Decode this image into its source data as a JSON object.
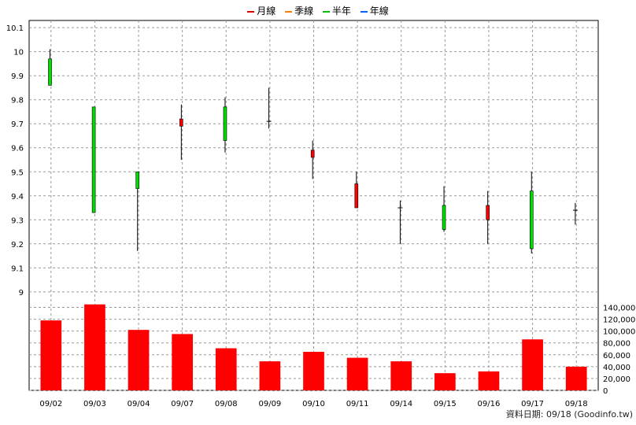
{
  "legend": [
    {
      "label": "月線",
      "color": "#e00000"
    },
    {
      "label": "季線",
      "color": "#ff8000"
    },
    {
      "label": "半年",
      "color": "#00c000"
    },
    {
      "label": "年線",
      "color": "#0060ff"
    }
  ],
  "footer": "資料日期: 09/18  (Goodinfo.tw)",
  "chart_data": [
    {
      "type": "candlestick",
      "title": "",
      "categories": [
        "09/02",
        "09/03",
        "09/04",
        "09/07",
        "09/08",
        "09/09",
        "09/10",
        "09/11",
        "09/14",
        "09/15",
        "09/16",
        "09/17",
        "09/18"
      ],
      "open": [
        9.97,
        9.77,
        9.5,
        9.69,
        9.77,
        9.71,
        9.56,
        9.35,
        9.35,
        9.36,
        9.3,
        9.42,
        9.34
      ],
      "close": [
        9.86,
        9.33,
        9.43,
        9.72,
        9.63,
        9.71,
        9.59,
        9.45,
        9.35,
        9.26,
        9.36,
        9.18,
        9.34
      ],
      "high": [
        10.01,
        9.77,
        9.5,
        9.78,
        9.81,
        9.85,
        9.63,
        9.5,
        9.38,
        9.44,
        9.42,
        9.5,
        9.37
      ],
      "low": [
        9.86,
        9.33,
        9.17,
        9.55,
        9.58,
        9.68,
        9.47,
        9.35,
        9.2,
        9.25,
        9.2,
        9.16,
        9.28
      ],
      "up_color": "#ff0000",
      "down_color": "#00dd00",
      "ylim": [
        8.97,
        10.13
      ],
      "yticks": [
        "10.1",
        "10",
        "9.9",
        "9.8",
        "9.7",
        "9.6",
        "9.5",
        "9.4",
        "9.3",
        "9.2",
        "9.1",
        "9"
      ],
      "grid": true
    },
    {
      "type": "bar",
      "title": "",
      "categories": [
        "09/02",
        "09/03",
        "09/04",
        "09/07",
        "09/08",
        "09/09",
        "09/10",
        "09/11",
        "09/14",
        "09/15",
        "09/16",
        "09/17",
        "09/18"
      ],
      "values": [
        118000,
        145000,
        102000,
        95000,
        71000,
        49000,
        65000,
        55000,
        49000,
        29000,
        32000,
        86000,
        40000
      ],
      "color": "#ff0000",
      "ylim": [
        0,
        150000
      ],
      "yticks": [
        "140,000",
        "120,000",
        "100,000",
        "80,000",
        "60,000",
        "40,000",
        "20,000",
        "0"
      ],
      "grid": true
    }
  ]
}
